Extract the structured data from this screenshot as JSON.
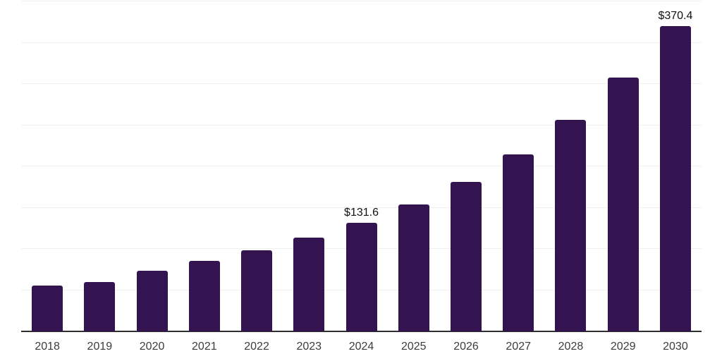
{
  "chart_data": {
    "type": "bar",
    "title": "",
    "xlabel": "",
    "ylabel": "",
    "categories": [
      "2018",
      "2019",
      "2020",
      "2021",
      "2022",
      "2023",
      "2024",
      "2025",
      "2026",
      "2027",
      "2028",
      "2029",
      "2030"
    ],
    "values": [
      55.6,
      59.9,
      73.2,
      85.5,
      98.6,
      113.4,
      131.6,
      153.9,
      181.0,
      214.4,
      256.4,
      307.7,
      370.4
    ],
    "data_labels": [
      {
        "category": "2024",
        "text": "$131.6"
      },
      {
        "category": "2030",
        "text": "$370.4"
      }
    ],
    "ylim": [
      0,
      400
    ],
    "gridline_step": 50,
    "grid": true,
    "y_tick_labels_visible": false,
    "legend_position": "none"
  },
  "colors": {
    "bar": "#331450",
    "axis_line": "#2e2e2e",
    "gridline": "#f0f0f0",
    "tick_label": "#3c3c3c",
    "data_label": "#111111",
    "background": "#ffffff"
  }
}
